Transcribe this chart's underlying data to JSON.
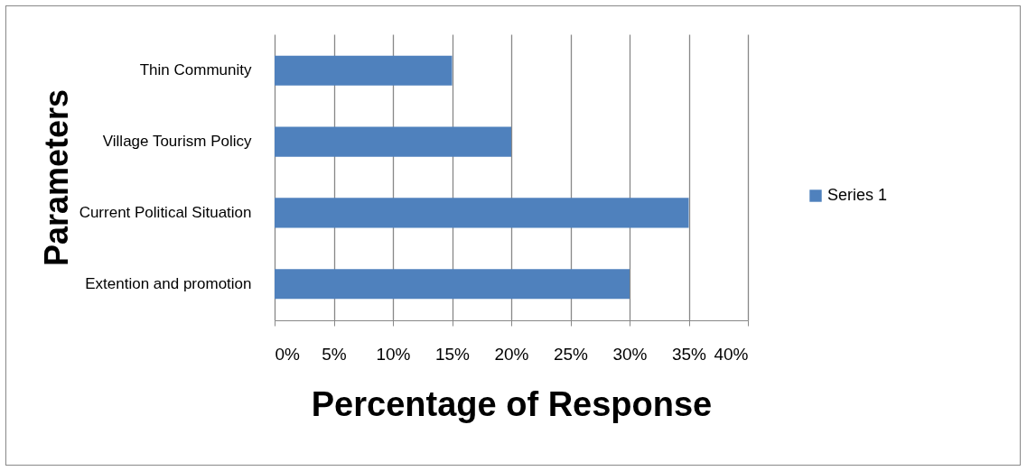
{
  "chart_data": {
    "type": "bar",
    "orientation": "horizontal",
    "xlabel": "Percentage of Response",
    "ylabel": "Parameters",
    "categories": [
      "Thin Community",
      "Village Tourism Policy",
      "Current Political Situation",
      "Extention and promotion"
    ],
    "series": [
      {
        "name": "Series 1",
        "color": "#4f81bd",
        "values": [
          15,
          20,
          35,
          30
        ]
      }
    ],
    "xlim": [
      0,
      40
    ],
    "xticks": [
      {
        "value": 0,
        "label": "0%"
      },
      {
        "value": 5,
        "label": "5%"
      },
      {
        "value": 10,
        "label": "10%"
      },
      {
        "value": 15,
        "label": "15%"
      },
      {
        "value": 20,
        "label": "20%"
      },
      {
        "value": 25,
        "label": "25%"
      },
      {
        "value": 30,
        "label": "30%"
      },
      {
        "value": 35,
        "label": "35%"
      },
      {
        "value": 40,
        "label": "40%"
      }
    ],
    "grid": "x",
    "legend": "right"
  }
}
